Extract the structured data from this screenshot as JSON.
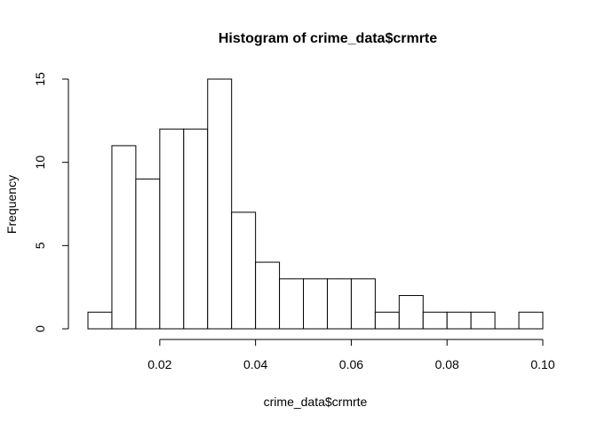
{
  "chart_data": {
    "type": "histogram",
    "title": "Histogram of crime_data$crmrte",
    "xlabel": "crime_data$crmrte",
    "ylabel": "Frequency",
    "bin_width": 0.005,
    "bins": [
      {
        "start": 0.005,
        "end": 0.01,
        "count": 1
      },
      {
        "start": 0.01,
        "end": 0.015,
        "count": 11
      },
      {
        "start": 0.015,
        "end": 0.02,
        "count": 9
      },
      {
        "start": 0.02,
        "end": 0.025,
        "count": 12
      },
      {
        "start": 0.025,
        "end": 0.03,
        "count": 12
      },
      {
        "start": 0.03,
        "end": 0.035,
        "count": 15
      },
      {
        "start": 0.035,
        "end": 0.04,
        "count": 7
      },
      {
        "start": 0.04,
        "end": 0.045,
        "count": 4
      },
      {
        "start": 0.045,
        "end": 0.05,
        "count": 3
      },
      {
        "start": 0.05,
        "end": 0.055,
        "count": 3
      },
      {
        "start": 0.055,
        "end": 0.06,
        "count": 3
      },
      {
        "start": 0.06,
        "end": 0.065,
        "count": 3
      },
      {
        "start": 0.065,
        "end": 0.07,
        "count": 1
      },
      {
        "start": 0.07,
        "end": 0.075,
        "count": 2
      },
      {
        "start": 0.075,
        "end": 0.08,
        "count": 1
      },
      {
        "start": 0.08,
        "end": 0.085,
        "count": 1
      },
      {
        "start": 0.085,
        "end": 0.09,
        "count": 1
      },
      {
        "start": 0.09,
        "end": 0.095,
        "count": 0
      },
      {
        "start": 0.095,
        "end": 0.1,
        "count": 1
      }
    ],
    "xlim": [
      0.005,
      0.1
    ],
    "ylim": [
      0,
      15
    ],
    "x_ticks": [
      0.02,
      0.04,
      0.06,
      0.08,
      0.1
    ],
    "x_tick_labels": [
      "0.02",
      "0.04",
      "0.06",
      "0.08",
      "0.10"
    ],
    "y_ticks": [
      0,
      5,
      10,
      15
    ],
    "y_tick_labels": [
      "0",
      "5",
      "10",
      "15"
    ],
    "grid": false,
    "legend": "none",
    "colors": {
      "bar_fill": "#ffffff",
      "bar_stroke": "#000000",
      "background": "#ffffff"
    }
  }
}
